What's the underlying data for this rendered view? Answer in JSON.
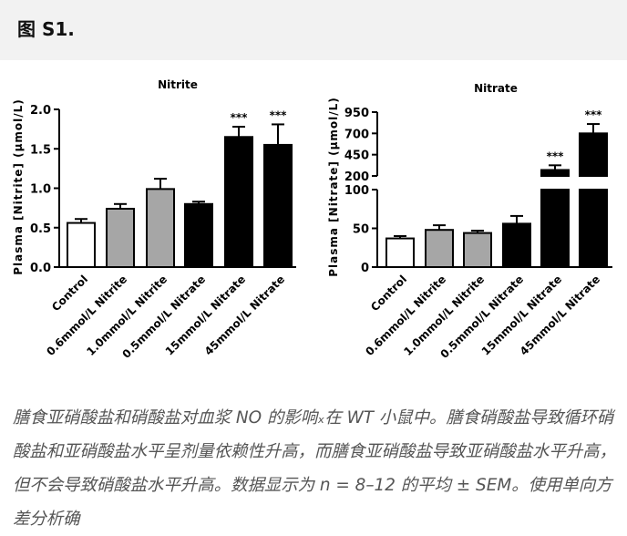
{
  "header": {
    "title": "图 S1."
  },
  "chart_data": [
    {
      "type": "bar",
      "title": "Nitrite",
      "ylabel": "Plasma [Nitrite] (μmol/L)",
      "categories": [
        "Control",
        "0.6mmol/L Nitrite",
        "1.0mmol/L Nitrite",
        "0.5mmol/L Nitrate",
        "15mmol/L Nitrate",
        "45mmol/L Nitrate"
      ],
      "values": [
        0.56,
        0.74,
        0.99,
        0.8,
        1.65,
        1.55
      ],
      "errors": [
        0.05,
        0.06,
        0.13,
        0.03,
        0.13,
        0.26
      ],
      "colors": [
        "#ffffff",
        "#a6a6a6",
        "#a6a6a6",
        "#000000",
        "#000000",
        "#000000"
      ],
      "significance": [
        "",
        "",
        "",
        "",
        "***",
        "***"
      ],
      "ylim": [
        0,
        2.0
      ],
      "yticks": [
        "0.0",
        "0.5",
        "1.0",
        "1.5",
        "2.0"
      ]
    },
    {
      "type": "bar",
      "title": "Nitrate",
      "ylabel": "Plasma [Nitrate] (μmol/L)",
      "categories": [
        "Control",
        "0.6mmol/L Nitrite",
        "1.0mmol/L Nitrite",
        "0.5mmol/L Nitrate",
        "15mmol/L Nitrate",
        "45mmol/L Nitrate"
      ],
      "values": [
        37,
        48,
        44,
        56,
        270,
        700
      ],
      "errors": [
        3,
        6,
        3,
        10,
        55,
        110
      ],
      "colors": [
        "#ffffff",
        "#a6a6a6",
        "#a6a6a6",
        "#000000",
        "#000000",
        "#000000"
      ],
      "significance": [
        "",
        "",
        "",
        "",
        "***",
        "***"
      ],
      "axis_break": {
        "lower_range": [
          0,
          100
        ],
        "upper_range": [
          200,
          950
        ]
      },
      "yticks_lower": [
        "0",
        "50",
        "100"
      ],
      "yticks_upper": [
        "200",
        "450",
        "700",
        "950"
      ]
    }
  ],
  "caption": "膳食亚硝酸盐和硝酸盐对血浆 NO 的影响ₓ在 WT 小鼠中。膳食硝酸盐导致循环硝酸盐和亚硝酸盐水平呈剂量依赖性升高，而膳食亚硝酸盐导致亚硝酸盐水平升高，但不会导致硝酸盐水平升高。数据显示为 n = 8–12 的平均 ± SEM。使用单向方差分析确"
}
